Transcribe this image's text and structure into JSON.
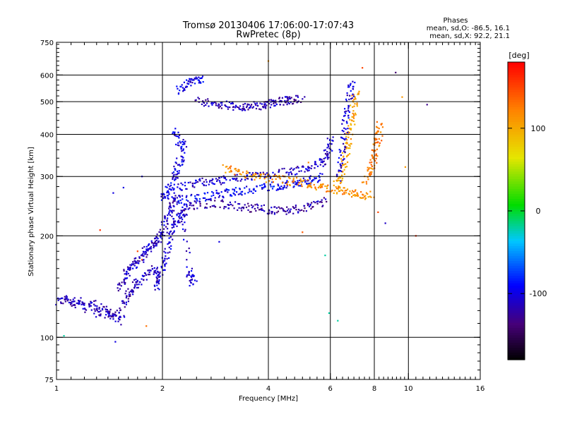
{
  "chart_data": {
    "type": "scatter",
    "title": "Tromsø 20130406 17:06:00-17:07:43",
    "subtitle": "RwPretec (8p)",
    "xlabel": "Frequency [MHz]",
    "ylabel": "Stationary phase Virtual Height [km]",
    "x_scale": "log",
    "y_scale": "log",
    "xlim": [
      1,
      16
    ],
    "ylim": [
      75,
      750
    ],
    "x_ticks": [
      1,
      2,
      4,
      6,
      8,
      10,
      16
    ],
    "x_tick_labels": [
      "1",
      "2",
      "4",
      "6",
      "8",
      "10",
      "16"
    ],
    "y_ticks": [
      75,
      100,
      200,
      300,
      400,
      500,
      600,
      750
    ],
    "y_tick_labels": [
      "75",
      "100",
      "200",
      "300",
      "400",
      "500",
      "600",
      "750"
    ],
    "grid": true,
    "stats": {
      "heading": "Phases",
      "line1": "mean, sd,O: -86.5, 16.1",
      "line2": "mean, sd,X:  92.2, 21.1"
    },
    "colorbar": {
      "label": "[deg]",
      "range": [
        -180,
        180
      ],
      "ticks": [
        100,
        0,
        -100
      ],
      "tick_labels": [
        "100",
        "0",
        "-100"
      ]
    },
    "traces": [
      {
        "phase_deg": -115,
        "points": [
          [
            1.0,
            128
          ],
          [
            1.05,
            131
          ],
          [
            1.1,
            126
          ],
          [
            1.15,
            130
          ],
          [
            1.2,
            122
          ],
          [
            1.25,
            127
          ],
          [
            1.3,
            118
          ],
          [
            1.35,
            124
          ],
          [
            1.4,
            115
          ],
          [
            1.45,
            119
          ],
          [
            1.5,
            112
          ],
          [
            1.55,
            128
          ],
          [
            1.6,
            135
          ],
          [
            1.65,
            142
          ],
          [
            1.7,
            148
          ],
          [
            1.8,
            155
          ],
          [
            1.9,
            160
          ],
          [
            1.95,
            150
          ]
        ]
      },
      {
        "phase_deg": -110,
        "points": [
          [
            1.5,
            140
          ],
          [
            1.55,
            150
          ],
          [
            1.6,
            158
          ],
          [
            1.65,
            165
          ],
          [
            1.7,
            170
          ],
          [
            1.75,
            176
          ],
          [
            1.8,
            183
          ],
          [
            1.85,
            188
          ],
          [
            1.9,
            192
          ],
          [
            1.95,
            200
          ],
          [
            2.0,
            210
          ],
          [
            2.05,
            225
          ],
          [
            2.1,
            240
          ],
          [
            2.15,
            255
          ],
          [
            2.2,
            265
          ]
        ]
      },
      {
        "phase_deg": -105,
        "points": [
          [
            1.9,
            140
          ],
          [
            1.95,
            150
          ],
          [
            2.0,
            165
          ],
          [
            2.05,
            180
          ],
          [
            2.1,
            200
          ],
          [
            2.15,
            215
          ],
          [
            2.2,
            225
          ],
          [
            2.25,
            232
          ],
          [
            2.3,
            240
          ],
          [
            2.35,
            160
          ],
          [
            2.4,
            150
          ],
          [
            2.45,
            145
          ]
        ]
      },
      {
        "phase_deg": -100,
        "points": [
          [
            2.0,
            260
          ],
          [
            2.05,
            270
          ],
          [
            2.1,
            280
          ],
          [
            2.15,
            300
          ],
          [
            2.2,
            320
          ],
          [
            2.25,
            340
          ],
          [
            2.3,
            370
          ],
          [
            2.2,
            390
          ],
          [
            2.15,
            410
          ]
        ]
      },
      {
        "phase_deg": -95,
        "points": [
          [
            2.2,
            255
          ],
          [
            2.4,
            258
          ],
          [
            2.6,
            262
          ],
          [
            2.8,
            266
          ],
          [
            3.0,
            268
          ],
          [
            3.2,
            272
          ],
          [
            3.5,
            276
          ],
          [
            3.8,
            280
          ],
          [
            4.1,
            282
          ],
          [
            4.4,
            284
          ],
          [
            4.7,
            288
          ],
          [
            5.0,
            292
          ],
          [
            5.3,
            296
          ],
          [
            5.6,
            300
          ]
        ]
      },
      {
        "phase_deg": -120,
        "points": [
          [
            2.3,
            245
          ],
          [
            2.5,
            248
          ],
          [
            2.8,
            252
          ],
          [
            3.1,
            248
          ],
          [
            3.4,
            244
          ],
          [
            3.7,
            242
          ],
          [
            4.0,
            240
          ],
          [
            4.3,
            238
          ],
          [
            4.6,
            240
          ],
          [
            5.0,
            243
          ],
          [
            5.4,
            248
          ],
          [
            5.8,
            255
          ]
        ]
      },
      {
        "phase_deg": -110,
        "points": [
          [
            2.2,
            280
          ],
          [
            2.4,
            285
          ],
          [
            2.6,
            290
          ],
          [
            2.8,
            293
          ],
          [
            3.0,
            296
          ],
          [
            3.3,
            298
          ],
          [
            3.6,
            302
          ],
          [
            4.0,
            305
          ],
          [
            4.4,
            310
          ],
          [
            4.8,
            315
          ],
          [
            5.2,
            320
          ],
          [
            5.6,
            330
          ],
          [
            5.8,
            345
          ],
          [
            5.9,
            365
          ],
          [
            6.0,
            385
          ]
        ]
      },
      {
        "phase_deg": 115,
        "points": [
          [
            3.0,
            318
          ],
          [
            3.2,
            312
          ],
          [
            3.5,
            305
          ],
          [
            3.8,
            300
          ],
          [
            4.2,
            296
          ],
          [
            4.6,
            292
          ],
          [
            5.0,
            288
          ],
          [
            5.4,
            282
          ],
          [
            5.8,
            278
          ],
          [
            6.2,
            274
          ],
          [
            6.6,
            270
          ],
          [
            7.0,
            268
          ],
          [
            7.4,
            266
          ],
          [
            7.8,
            265
          ]
        ]
      },
      {
        "phase_deg": 105,
        "points": [
          [
            6.2,
            285
          ],
          [
            6.4,
            300
          ],
          [
            6.5,
            320
          ],
          [
            6.6,
            345
          ],
          [
            6.7,
            375
          ],
          [
            6.8,
            410
          ],
          [
            6.9,
            450
          ],
          [
            7.0,
            500
          ],
          [
            7.05,
            540
          ]
        ]
      },
      {
        "phase_deg": 125,
        "points": [
          [
            7.5,
            290
          ],
          [
            7.7,
            310
          ],
          [
            7.9,
            330
          ],
          [
            8.0,
            355
          ],
          [
            8.1,
            380
          ],
          [
            8.2,
            405
          ],
          [
            8.3,
            430
          ]
        ]
      },
      {
        "phase_deg": -105,
        "points": [
          [
            6.3,
            300
          ],
          [
            6.4,
            340
          ],
          [
            6.5,
            380
          ],
          [
            6.6,
            430
          ],
          [
            6.7,
            480
          ],
          [
            6.8,
            530
          ],
          [
            6.9,
            580
          ]
        ]
      },
      {
        "phase_deg": -115,
        "points": [
          [
            2.5,
            505
          ],
          [
            2.7,
            498
          ],
          [
            2.9,
            492
          ],
          [
            3.1,
            488
          ],
          [
            3.3,
            486
          ],
          [
            3.5,
            484
          ],
          [
            3.7,
            488
          ],
          [
            3.9,
            495
          ],
          [
            4.1,
            500
          ],
          [
            4.3,
            503
          ],
          [
            4.5,
            506
          ],
          [
            4.7,
            510
          ],
          [
            5.0,
            515
          ]
        ]
      },
      {
        "phase_deg": -100,
        "points": [
          [
            2.2,
            540
          ],
          [
            2.3,
            560
          ],
          [
            2.4,
            575
          ],
          [
            2.5,
            585
          ],
          [
            2.6,
            590
          ]
        ]
      }
    ],
    "scatter_points": [
      {
        "x": 1.05,
        "y": 101,
        "phase_deg": -20
      },
      {
        "x": 1.47,
        "y": 97,
        "phase_deg": -100
      },
      {
        "x": 1.33,
        "y": 208,
        "phase_deg": 160
      },
      {
        "x": 1.45,
        "y": 268,
        "phase_deg": -100
      },
      {
        "x": 1.55,
        "y": 278,
        "phase_deg": -100
      },
      {
        "x": 1.75,
        "y": 300,
        "phase_deg": -100
      },
      {
        "x": 1.7,
        "y": 180,
        "phase_deg": 150
      },
      {
        "x": 1.75,
        "y": 170,
        "phase_deg": 140
      },
      {
        "x": 1.8,
        "y": 108,
        "phase_deg": 130
      },
      {
        "x": 2.9,
        "y": 192,
        "phase_deg": -100
      },
      {
        "x": 5.0,
        "y": 205,
        "phase_deg": 140
      },
      {
        "x": 5.8,
        "y": 175,
        "phase_deg": -20
      },
      {
        "x": 5.95,
        "y": 118,
        "phase_deg": -20
      },
      {
        "x": 6.3,
        "y": 112,
        "phase_deg": -20
      },
      {
        "x": 8.2,
        "y": 235,
        "phase_deg": 150
      },
      {
        "x": 8.6,
        "y": 218,
        "phase_deg": -110
      },
      {
        "x": 9.2,
        "y": 610,
        "phase_deg": -140
      },
      {
        "x": 10.5,
        "y": 200,
        "phase_deg": 160
      },
      {
        "x": 11.3,
        "y": 490,
        "phase_deg": -130
      },
      {
        "x": 9.6,
        "y": 516,
        "phase_deg": 110
      },
      {
        "x": 4.0,
        "y": 660,
        "phase_deg": 110
      },
      {
        "x": 7.4,
        "y": 630,
        "phase_deg": 150
      },
      {
        "x": 9.8,
        "y": 320,
        "phase_deg": 110
      },
      {
        "x": 5.2,
        "y": 330,
        "phase_deg": 120
      }
    ]
  }
}
